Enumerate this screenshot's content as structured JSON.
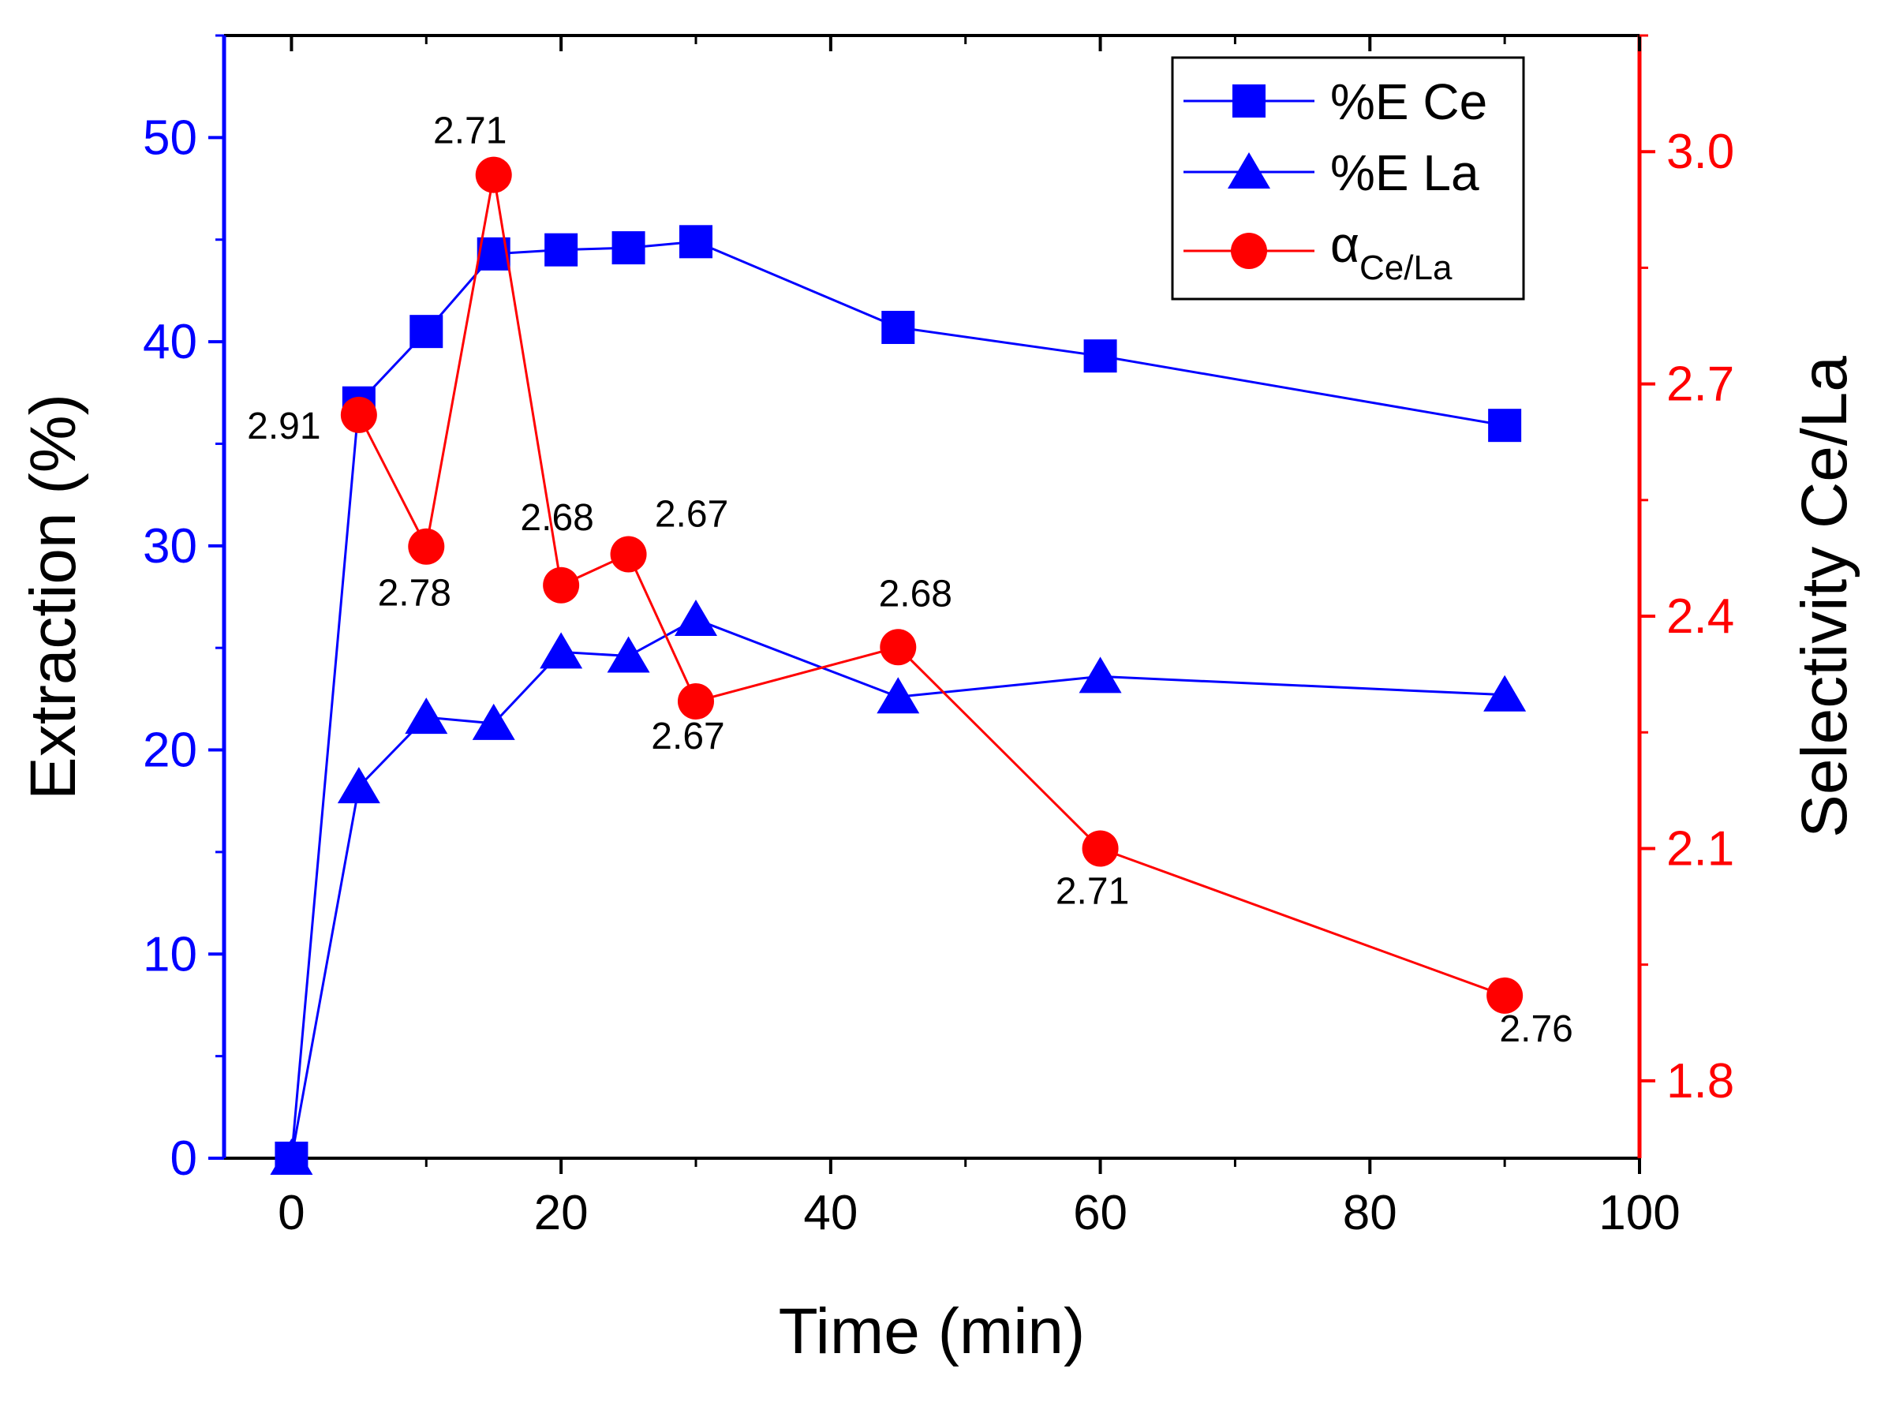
{
  "chart_data": {
    "type": "line",
    "xlabel": "Time (min)",
    "ylabel_left": "Extraction (%)",
    "ylabel_right": "Selectivity Ce/La",
    "xlim": [
      -5,
      100
    ],
    "ylim_left": [
      0,
      55
    ],
    "ylim_right": [
      1.7,
      3.15
    ],
    "x_ticks": [
      "0",
      "20",
      "40",
      "60",
      "80",
      "100"
    ],
    "y_left_ticks": [
      "0",
      "10",
      "20",
      "30",
      "40",
      "50"
    ],
    "y_right_ticks": [
      "1.8",
      "2.1",
      "2.4",
      "2.7",
      "3.0"
    ],
    "grid": false,
    "legend_position": "top-right",
    "series": [
      {
        "name": "%E Ce",
        "axis": "left",
        "marker": "square",
        "color": "#0000ff",
        "x": [
          0,
          5,
          10,
          15,
          20,
          25,
          30,
          45,
          60,
          90
        ],
        "y": [
          0,
          37.0,
          40.5,
          44.3,
          44.5,
          44.6,
          44.9,
          40.7,
          39.3,
          35.9
        ]
      },
      {
        "name": "%E La",
        "axis": "left",
        "marker": "triangle",
        "color": "#0000ff",
        "x": [
          0,
          5,
          10,
          15,
          20,
          25,
          30,
          45,
          60,
          90
        ],
        "y": [
          0,
          18.2,
          21.6,
          21.3,
          24.8,
          24.6,
          26.4,
          22.6,
          23.6,
          22.7
        ]
      },
      {
        "name_prefix": "α",
        "name_sub": "Ce/La",
        "axis": "right",
        "marker": "circle",
        "color": "#ff0000",
        "x": [
          5,
          10,
          15,
          20,
          25,
          30,
          45,
          60,
          90
        ],
        "y": [
          2.66,
          2.49,
          2.97,
          2.44,
          2.48,
          2.29,
          2.36,
          2.1,
          1.91
        ]
      }
    ],
    "annotations": [
      {
        "text": "2.91",
        "x": 5,
        "y": 2.66,
        "dx": -95,
        "dy": 30
      },
      {
        "text": "2.78",
        "x": 10,
        "y": 2.49,
        "dx": -15,
        "dy": 75
      },
      {
        "text": "2.71",
        "x": 15,
        "y": 2.97,
        "dx": -30,
        "dy": -40
      },
      {
        "text": "2.68",
        "x": 20,
        "y": 2.44,
        "dx": -5,
        "dy": -70
      },
      {
        "text": "2.67",
        "x": 25,
        "y": 2.48,
        "dx": 80,
        "dy": -35
      },
      {
        "text": "2.67",
        "x": 30,
        "y": 2.29,
        "dx": -10,
        "dy": 60
      },
      {
        "text": "2.68",
        "x": 45,
        "y": 2.36,
        "dx": 22,
        "dy": -52
      },
      {
        "text": "2.71",
        "x": 60,
        "y": 2.1,
        "dx": -10,
        "dy": 70
      },
      {
        "text": "2.76",
        "x": 90,
        "y": 1.91,
        "dx": 40,
        "dy": 58
      }
    ]
  }
}
